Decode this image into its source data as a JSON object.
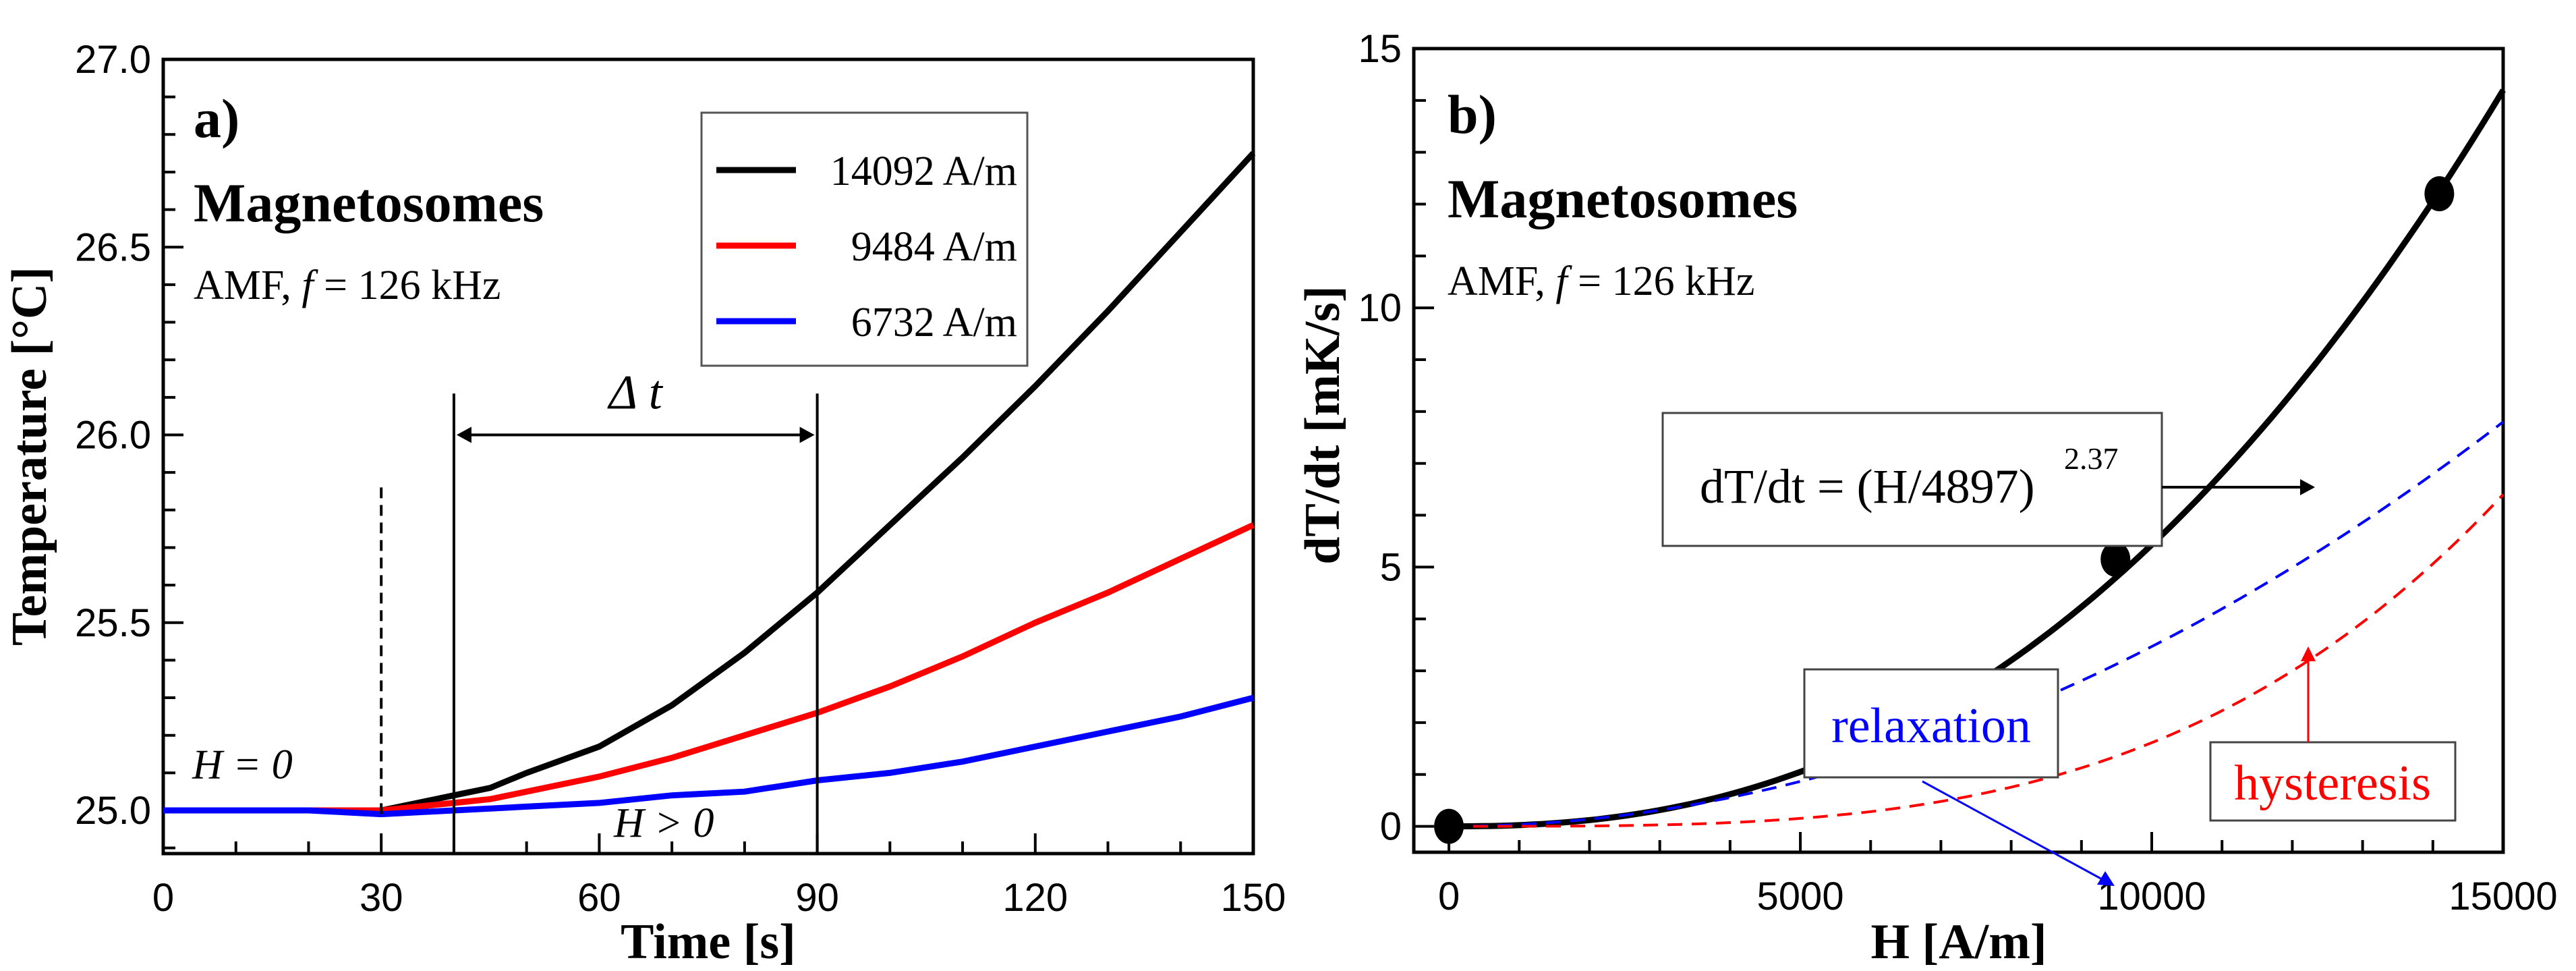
{
  "chart_data": [
    {
      "type": "line",
      "panel_label": "a)",
      "title": "Magnetosomes",
      "subtitle_prefix": "AMF, ",
      "subtitle_f": "f",
      "subtitle_rest": " = 126 kHz",
      "xlabel": "Time [s]",
      "ylabel": "Temperature [°C]",
      "xlim": [
        0,
        150
      ],
      "ylim": [
        24.885,
        27.0
      ],
      "xticks": [
        0,
        30,
        60,
        90,
        120,
        150
      ],
      "xtick_labels": [
        "0",
        "30",
        "60",
        "90",
        "120",
        "150"
      ],
      "yticks": [
        25.0,
        25.5,
        26.0,
        26.5,
        27.0
      ],
      "ytick_labels": [
        "25.0",
        "25.5",
        "26.0",
        "26.5",
        "27.0"
      ],
      "legend_position": "top-right",
      "series": [
        {
          "name": "14092 A/m",
          "color": "#000000",
          "x": [
            0,
            10,
            20,
            30,
            35,
            40,
            45,
            50,
            60,
            70,
            80,
            90,
            100,
            110,
            120,
            130,
            140,
            150
          ],
          "y": [
            25.0,
            25.0,
            25.0,
            25.0,
            25.02,
            25.04,
            25.06,
            25.1,
            25.17,
            25.28,
            25.42,
            25.58,
            25.76,
            25.94,
            26.13,
            26.33,
            26.54,
            26.75
          ]
        },
        {
          "name": "9484 A/m",
          "color": "#ff0000",
          "x": [
            0,
            10,
            20,
            30,
            35,
            40,
            45,
            50,
            60,
            70,
            80,
            90,
            100,
            110,
            120,
            130,
            140,
            150
          ],
          "y": [
            25.0,
            25.0,
            25.0,
            25.0,
            25.01,
            25.02,
            25.03,
            25.05,
            25.09,
            25.14,
            25.2,
            25.26,
            25.33,
            25.41,
            25.5,
            25.58,
            25.67,
            25.76
          ]
        },
        {
          "name": "6732 A/m",
          "color": "#0000ff",
          "x": [
            0,
            10,
            20,
            30,
            40,
            50,
            60,
            70,
            80,
            90,
            100,
            110,
            120,
            130,
            140,
            150
          ],
          "y": [
            25.0,
            25.0,
            25.0,
            24.99,
            25.0,
            25.01,
            25.02,
            25.04,
            25.05,
            25.08,
            25.1,
            25.13,
            25.17,
            25.21,
            25.25,
            25.3
          ]
        }
      ],
      "annotations": {
        "h0": "H = 0",
        "hpos": "H > 0",
        "delta_t": "Δ t",
        "dashed_x": 30,
        "interval": [
          40,
          90
        ]
      }
    },
    {
      "type": "scatter",
      "panel_label": "b)",
      "title": "Magnetosomes",
      "subtitle_prefix": "AMF, ",
      "subtitle_f": "f",
      "subtitle_rest": " = 126 kHz",
      "xlabel": "H [A/m]",
      "ylabel": "dT/dt [mK/s]",
      "xlim": [
        -500,
        15000
      ],
      "ylim": [
        -0.5,
        15
      ],
      "xticks": [
        0,
        5000,
        10000,
        15000
      ],
      "xtick_labels": [
        "0",
        "5000",
        "10000",
        "15000"
      ],
      "yticks": [
        0,
        5,
        10,
        15
      ],
      "ytick_labels": [
        "0",
        "5",
        "10",
        "15"
      ],
      "points": {
        "x": [
          0,
          6732,
          9484,
          14092
        ],
        "y": [
          0,
          1.65,
          5.15,
          12.2
        ]
      },
      "fit": {
        "label_main": "dT/dt = (H/4897)",
        "label_exp": "2.37",
        "scale": 4897,
        "exponent": 2.37,
        "color": "#000000"
      },
      "relaxation": {
        "label": "relaxation",
        "color": "#0000ff",
        "value_at_15000": 7.8,
        "exponent": 2.0
      },
      "hysteresis": {
        "label": "hysteresis",
        "color": "#ff0000",
        "value_at_15000": 6.4,
        "exponent": 3.4
      }
    }
  ]
}
